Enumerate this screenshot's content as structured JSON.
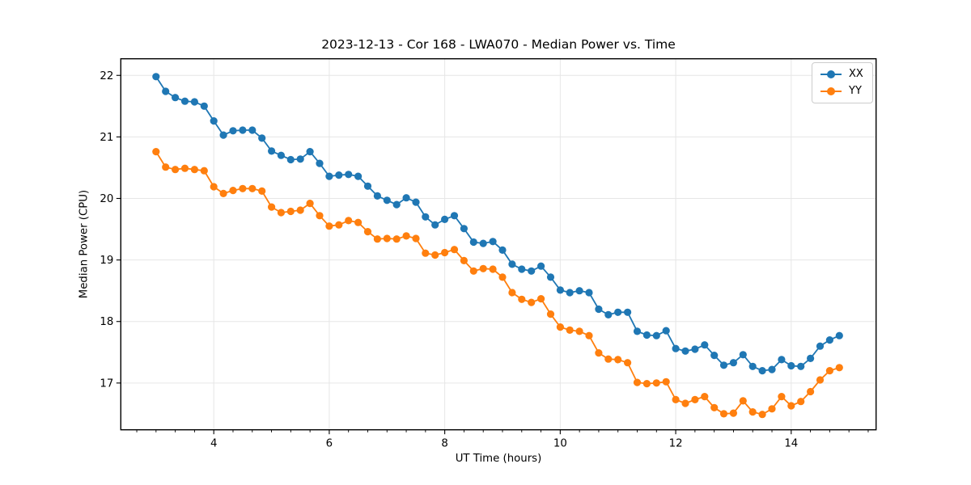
{
  "chart_data": {
    "type": "line",
    "title": "2023-12-13 - Cor 168 - LWA070 - Median Power vs. Time",
    "xlabel": "UT Time (hours)",
    "ylabel": "Median Power (CPU)",
    "xlim": [
      2.39,
      15.47
    ],
    "ylim": [
      16.24,
      22.27
    ],
    "x_ticks": [
      4,
      6,
      8,
      10,
      12,
      14
    ],
    "y_ticks": [
      17,
      18,
      19,
      20,
      21,
      22
    ],
    "x_minor_tick_step": 0.3333333,
    "grid": true,
    "grid_color": "#e6e6e6",
    "axis_color": "#000000",
    "legend_position": "upper right",
    "x_start": 3.0,
    "x_step": 0.1666667,
    "n_points": 72,
    "series": [
      {
        "name": "XX",
        "color": "#1f77b4",
        "values": [
          21.98,
          21.74,
          21.64,
          21.58,
          21.57,
          21.5,
          21.26,
          21.03,
          21.1,
          21.11,
          21.11,
          20.98,
          20.77,
          20.7,
          20.63,
          20.64,
          20.76,
          20.57,
          20.36,
          20.38,
          20.39,
          20.36,
          20.2,
          20.04,
          19.97,
          19.9,
          20.01,
          19.94,
          19.7,
          19.57,
          19.66,
          19.72,
          19.51,
          19.29,
          19.27,
          19.3,
          19.16,
          18.93,
          18.85,
          18.82,
          18.9,
          18.72,
          18.51,
          18.47,
          18.5,
          18.47,
          18.2,
          18.11,
          18.15,
          18.15,
          17.84,
          17.78,
          17.77,
          17.85,
          17.56,
          17.52,
          17.55,
          17.62,
          17.45,
          17.29,
          17.33,
          17.46,
          17.27,
          17.2,
          17.22,
          17.38,
          17.28,
          17.27,
          17.4,
          17.6,
          17.7,
          17.77
        ]
      },
      {
        "name": "YY",
        "color": "#ff7f0e",
        "values": [
          20.76,
          20.51,
          20.47,
          20.49,
          20.47,
          20.45,
          20.19,
          20.08,
          20.13,
          20.16,
          20.16,
          20.12,
          19.86,
          19.77,
          19.79,
          19.81,
          19.92,
          19.72,
          19.55,
          19.57,
          19.64,
          19.61,
          19.46,
          19.34,
          19.35,
          19.34,
          19.39,
          19.35,
          19.11,
          19.08,
          19.12,
          19.17,
          18.99,
          18.82,
          18.86,
          18.85,
          18.72,
          18.47,
          18.36,
          18.31,
          18.37,
          18.12,
          17.91,
          17.86,
          17.84,
          17.77,
          17.49,
          17.39,
          17.38,
          17.33,
          17.01,
          16.99,
          17.0,
          17.02,
          16.73,
          16.67,
          16.73,
          16.78,
          16.6,
          16.5,
          16.51,
          16.71,
          16.53,
          16.49,
          16.58,
          16.78,
          16.63,
          16.7,
          16.86,
          17.05,
          17.2,
          17.25
        ]
      }
    ]
  }
}
